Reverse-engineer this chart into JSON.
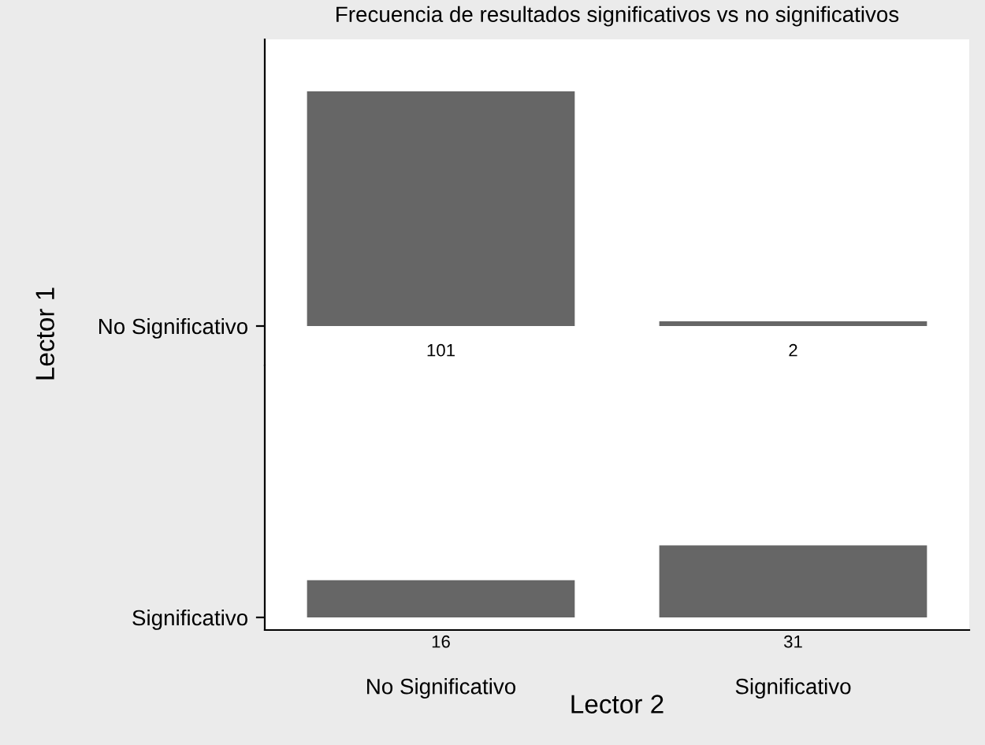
{
  "chart_data": [
    {
      "type": "bar",
      "title": "Frecuencia de resultados significativos vs no significativos",
      "ylabel": "Lector 1",
      "categories": [
        null,
        null
      ],
      "values": [
        101,
        2
      ],
      "color": "#666666",
      "annotations": [
        "No Significativo"
      ],
      "tick_labels": false,
      "data_labels": true
    },
    {
      "type": "bar",
      "xlabel": "Lector 2",
      "categories": [
        "No Significativo",
        "Significativo"
      ],
      "values": [
        16,
        31
      ],
      "color": "#666666",
      "annotations": [
        "Significativo"
      ],
      "tick_labels": "x",
      "data_labels": true
    }
  ]
}
